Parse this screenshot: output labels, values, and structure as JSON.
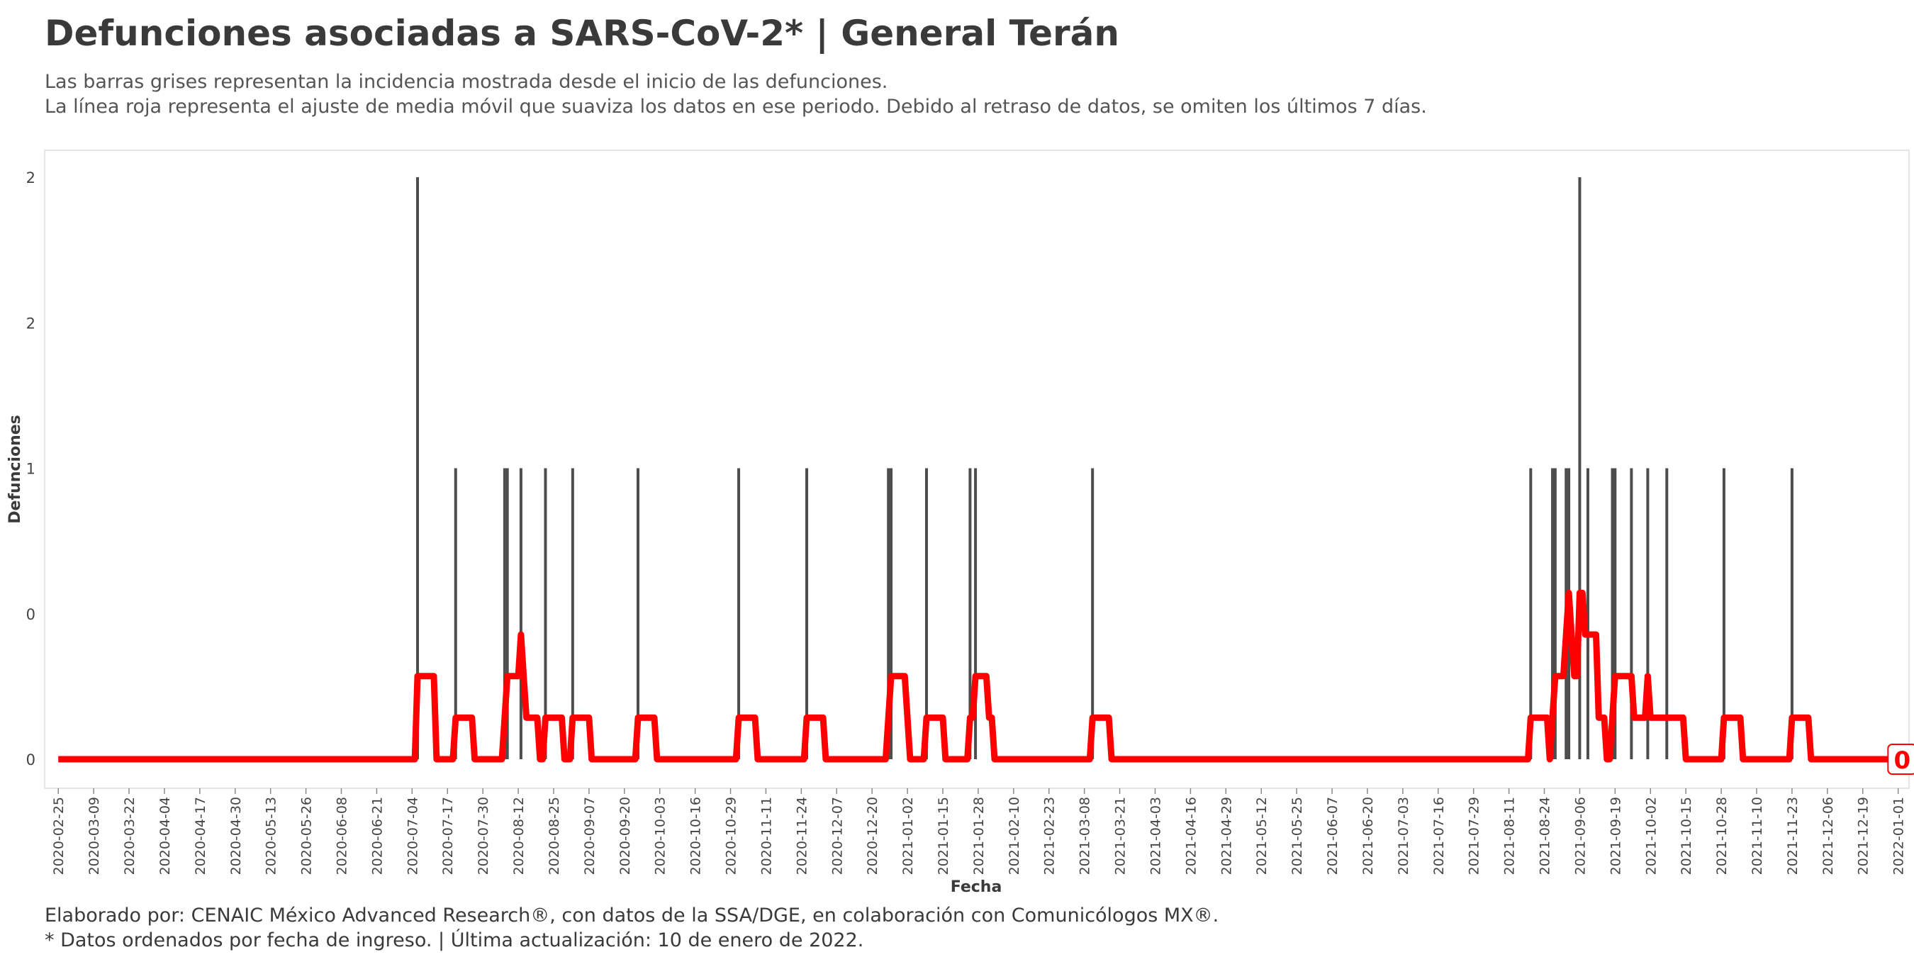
{
  "title": "Defunciones asociadas a SARS-CoV-2* | General Terán",
  "subtitle_lines": [
    "Las barras grises representan la incidencia mostrada desde el inicio de las defunciones.",
    "La línea roja representa el ajuste de media móvil que suaviza los datos en ese periodo. Debido al retraso de datos, se omiten los últimos 7 días."
  ],
  "caption_lines": [
    "Elaborado por: CENAIC México Advanced Research®, con datos de la SSA/DGE, en colaboración con Comunicólogos MX®.",
    "* Datos ordenados por fecha de ingreso. | Última actualización: 10 de enero de 2022."
  ],
  "colors": {
    "bars": "#4d4d4d",
    "line": "#ff0000",
    "panel_border": "#e5e5e5",
    "text": "#3a3a3a"
  },
  "chart_data": {
    "type": "bar",
    "xlabel": "Fecha",
    "ylabel": "Defunciones",
    "xlim": [
      "2020-02-20",
      "2022-01-05"
    ],
    "ylim": [
      0,
      2.1
    ],
    "grid": false,
    "y_ticks": [
      0,
      0.5,
      1,
      1.5,
      2
    ],
    "y_tick_labels": [
      "0",
      "0",
      "1",
      "2",
      "2"
    ],
    "x_ticks": [
      "2020-02-25",
      "2020-03-09",
      "2020-03-22",
      "2020-04-04",
      "2020-04-17",
      "2020-04-30",
      "2020-05-13",
      "2020-05-26",
      "2020-06-08",
      "2020-06-21",
      "2020-07-04",
      "2020-07-17",
      "2020-07-30",
      "2020-08-12",
      "2020-08-25",
      "2020-09-07",
      "2020-09-20",
      "2020-10-03",
      "2020-10-16",
      "2020-10-29",
      "2020-11-11",
      "2020-11-24",
      "2020-12-07",
      "2020-12-20",
      "2021-01-02",
      "2021-01-15",
      "2021-01-28",
      "2021-02-10",
      "2021-02-23",
      "2021-03-08",
      "2021-03-21",
      "2021-04-03",
      "2021-04-16",
      "2021-04-29",
      "2021-05-12",
      "2021-05-25",
      "2021-06-07",
      "2021-06-20",
      "2021-07-03",
      "2021-07-16",
      "2021-07-29",
      "2021-08-11",
      "2021-08-24",
      "2021-09-06",
      "2021-09-19",
      "2021-10-02",
      "2021-10-15",
      "2021-10-28",
      "2021-11-10",
      "2021-11-23",
      "2021-12-06",
      "2021-12-19",
      "2022-01-01"
    ],
    "series": [
      {
        "name": "Defunciones",
        "type": "bar",
        "points": [
          {
            "x": "2020-07-06",
            "y": 2
          },
          {
            "x": "2020-07-20",
            "y": 1
          },
          {
            "x": "2020-08-07",
            "y": 1
          },
          {
            "x": "2020-08-08",
            "y": 1
          },
          {
            "x": "2020-08-13",
            "y": 1
          },
          {
            "x": "2020-08-22",
            "y": 1
          },
          {
            "x": "2020-09-01",
            "y": 1
          },
          {
            "x": "2020-09-25",
            "y": 1
          },
          {
            "x": "2020-11-01",
            "y": 1
          },
          {
            "x": "2020-11-26",
            "y": 1
          },
          {
            "x": "2020-12-26",
            "y": 1
          },
          {
            "x": "2020-12-27",
            "y": 1
          },
          {
            "x": "2021-01-09",
            "y": 1
          },
          {
            "x": "2021-01-25",
            "y": 1
          },
          {
            "x": "2021-01-27",
            "y": 1
          },
          {
            "x": "2021-03-11",
            "y": 1
          },
          {
            "x": "2021-08-19",
            "y": 1
          },
          {
            "x": "2021-08-27",
            "y": 1
          },
          {
            "x": "2021-08-28",
            "y": 1
          },
          {
            "x": "2021-09-01",
            "y": 1
          },
          {
            "x": "2021-09-02",
            "y": 1
          },
          {
            "x": "2021-09-06",
            "y": 2
          },
          {
            "x": "2021-09-09",
            "y": 1
          },
          {
            "x": "2021-09-18",
            "y": 1
          },
          {
            "x": "2021-09-19",
            "y": 1
          },
          {
            "x": "2021-09-25",
            "y": 1
          },
          {
            "x": "2021-10-01",
            "y": 1
          },
          {
            "x": "2021-10-08",
            "y": 1
          },
          {
            "x": "2021-10-29",
            "y": 1
          },
          {
            "x": "2021-11-23",
            "y": 1
          }
        ]
      },
      {
        "name": "Media móvil",
        "type": "line",
        "window_days": 7,
        "x_start": "2020-02-25",
        "x_end": "2022-01-03"
      }
    ],
    "end_label": "0"
  }
}
